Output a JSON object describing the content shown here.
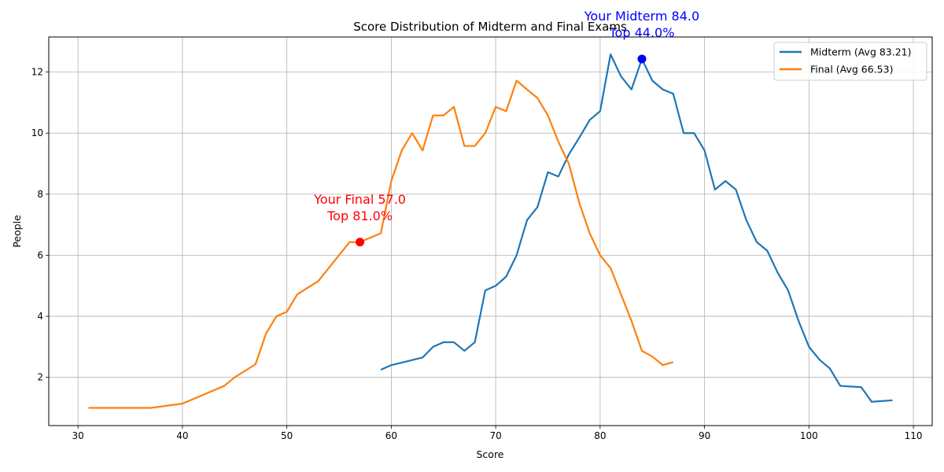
{
  "chart_data": {
    "type": "line",
    "title": "Score Distribution of Midterm and Final Exams",
    "xlabel": "Score",
    "ylabel": "People",
    "xlim": [
      27.2,
      111.8
    ],
    "ylim": [
      0.42,
      13.15
    ],
    "xticks": [
      30,
      40,
      50,
      60,
      70,
      80,
      90,
      100,
      110
    ],
    "yticks": [
      2,
      4,
      6,
      8,
      10,
      12
    ],
    "grid": true,
    "legend_position": "top-right",
    "series": [
      {
        "name": "Midterm (Avg 83.21)",
        "color": "#1f77b4",
        "points": [
          [
            59,
            2.25
          ],
          [
            60,
            2.4
          ],
          [
            63,
            2.65
          ],
          [
            64,
            3.0
          ],
          [
            65,
            3.15
          ],
          [
            66,
            3.15
          ],
          [
            67,
            2.87
          ],
          [
            68,
            3.15
          ],
          [
            69,
            4.85
          ],
          [
            70,
            5.0
          ],
          [
            71,
            5.3
          ],
          [
            72,
            6.0
          ],
          [
            73,
            7.15
          ],
          [
            74,
            7.58
          ],
          [
            75,
            8.72
          ],
          [
            76,
            8.58
          ],
          [
            77,
            9.3
          ],
          [
            78,
            9.85
          ],
          [
            79,
            10.43
          ],
          [
            80,
            10.72
          ],
          [
            81,
            12.58
          ],
          [
            82,
            11.86
          ],
          [
            83,
            11.43
          ],
          [
            84,
            12.43
          ],
          [
            85,
            11.72
          ],
          [
            86,
            11.43
          ],
          [
            87,
            11.29
          ],
          [
            88,
            10.0
          ],
          [
            89,
            10.0
          ],
          [
            90,
            9.43
          ],
          [
            91,
            8.15
          ],
          [
            92,
            8.43
          ],
          [
            93,
            8.15
          ],
          [
            94,
            7.15
          ],
          [
            95,
            6.43
          ],
          [
            96,
            6.15
          ],
          [
            97,
            5.43
          ],
          [
            98,
            4.85
          ],
          [
            99,
            3.85
          ],
          [
            100,
            3.0
          ],
          [
            101,
            2.58
          ],
          [
            102,
            2.29
          ],
          [
            103,
            1.72
          ],
          [
            105,
            1.68
          ],
          [
            106,
            1.2
          ],
          [
            108,
            1.25
          ]
        ]
      },
      {
        "name": "Final (Avg 66.53)",
        "color": "#ff7f0e",
        "points": [
          [
            31,
            1.0
          ],
          [
            37,
            1.0
          ],
          [
            40,
            1.14
          ],
          [
            44,
            1.72
          ],
          [
            45,
            2.0
          ],
          [
            47,
            2.43
          ],
          [
            48,
            3.43
          ],
          [
            49,
            4.0
          ],
          [
            50,
            4.15
          ],
          [
            51,
            4.72
          ],
          [
            53,
            5.15
          ],
          [
            56,
            6.43
          ],
          [
            57,
            6.43
          ],
          [
            59,
            6.72
          ],
          [
            60,
            8.43
          ],
          [
            61,
            9.43
          ],
          [
            62,
            10.0
          ],
          [
            63,
            9.43
          ],
          [
            64,
            10.58
          ],
          [
            65,
            10.58
          ],
          [
            66,
            10.86
          ],
          [
            67,
            9.58
          ],
          [
            68,
            9.58
          ],
          [
            69,
            10.0
          ],
          [
            70,
            10.86
          ],
          [
            71,
            10.72
          ],
          [
            72,
            11.72
          ],
          [
            73,
            11.43
          ],
          [
            74,
            11.15
          ],
          [
            75,
            10.58
          ],
          [
            76,
            9.72
          ],
          [
            77,
            9.0
          ],
          [
            78,
            7.72
          ],
          [
            79,
            6.72
          ],
          [
            80,
            6.0
          ],
          [
            81,
            5.58
          ],
          [
            82,
            4.72
          ],
          [
            83,
            3.85
          ],
          [
            84,
            2.87
          ],
          [
            85,
            2.68
          ],
          [
            86,
            2.4
          ],
          [
            87,
            2.5
          ]
        ]
      }
    ],
    "annotations": [
      {
        "x": 84.0,
        "y": 12.43,
        "color": "#0000ff",
        "line1": "Your Midterm 84.0",
        "line2": "Top 44.0%"
      },
      {
        "x": 57.0,
        "y": 6.43,
        "color": "#ff0000",
        "line1": "Your Final 57.0",
        "line2": "Top 81.0%"
      }
    ]
  }
}
